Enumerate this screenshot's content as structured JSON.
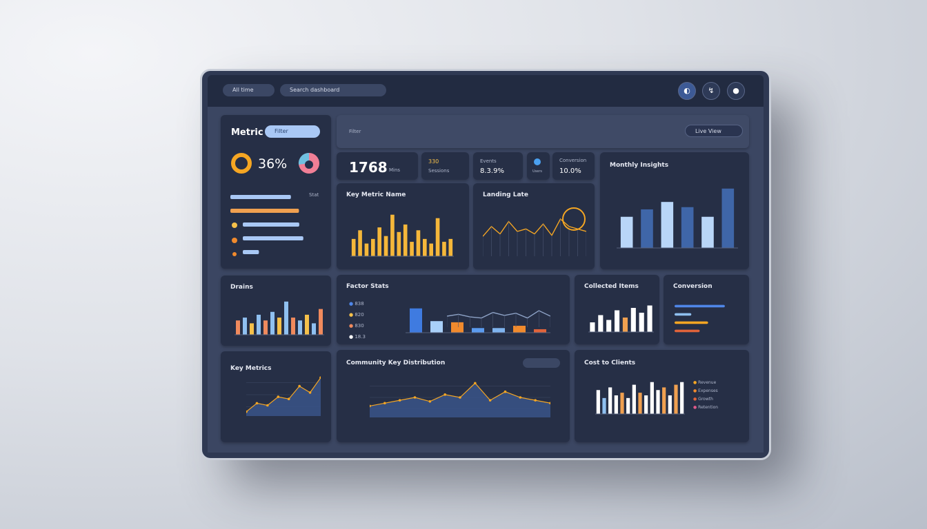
{
  "header": {
    "menu": "All time",
    "search": "Search dashboard"
  },
  "metric": {
    "title": "Metric",
    "filter": "Filter",
    "value": "36%",
    "note": "Stat"
  },
  "toolbar": {
    "label": "Filter",
    "button": "Live View"
  },
  "kpis": [
    {
      "value": "1768",
      "unit": "Mins"
    },
    {
      "value": "330",
      "label": "Sessions"
    },
    {
      "value": "8.3.9%",
      "label": "Events"
    },
    {
      "label": "Users"
    },
    {
      "value": "10.0%",
      "label": "Conversion"
    }
  ],
  "charts": [
    {
      "type": "hbar",
      "values": [
        75,
        85,
        70,
        75,
        20
      ],
      "xlim": [
        0,
        100
      ],
      "colors": [
        "#a9c8f5",
        "#f0a050",
        "#a9c8f5",
        "#a9c8f5",
        "#a9c8f5"
      ]
    },
    {
      "type": "bar",
      "title": "Key Metric Name",
      "values": [
        30,
        45,
        22,
        30,
        50,
        35,
        72,
        42,
        55,
        25,
        45,
        30,
        22,
        66,
        25,
        30
      ],
      "ylim": [
        0,
        80
      ],
      "color": "#f5b73a"
    },
    {
      "type": "line",
      "title": "Landing Late",
      "values": [
        40,
        60,
        45,
        70,
        50,
        55,
        45,
        65,
        42,
        75,
        60,
        55,
        50
      ],
      "ylim": [
        0,
        100
      ],
      "color": "#f5a623"
    },
    {
      "type": "bar",
      "title": "Monthly Insights",
      "values": [
        42,
        52,
        62,
        55,
        42,
        80
      ],
      "ylim": [
        0,
        90
      ],
      "colors": [
        "#b9d6f8",
        "#3f66a8",
        "#b9d6f8",
        "#3f66a8",
        "#b9d6f8",
        "#3f66a8"
      ]
    },
    {
      "type": "bar",
      "title": "Drains",
      "values": [
        25,
        30,
        20,
        35,
        25,
        40,
        30,
        58,
        30,
        25,
        35,
        20,
        45
      ],
      "ylim": [
        0,
        65
      ],
      "colors": [
        "#f08a5d",
        "#8fc0f0",
        "#f5c04a",
        "#8fc0f0",
        "#f08a5d",
        "#8fc0f0",
        "#f5c04a",
        "#8fc0f0",
        "#f08a5d",
        "#8fc0f0",
        "#f5c04a",
        "#8fc0f0",
        "#f08a5d"
      ]
    },
    {
      "type": "bar",
      "title": "Factor Stats",
      "values": [
        42,
        20,
        18,
        8,
        8,
        12,
        6
      ],
      "ylim": [
        0,
        50
      ],
      "colors": [
        "#3f7be0",
        "#a9d0f8",
        "#f08a2d",
        "#5b9bef",
        "#7fb4f0",
        "#f08a2d",
        "#e0633a"
      ],
      "legend": [
        "838",
        "820",
        "830",
        "18.3"
      ]
    },
    {
      "type": "line",
      "values": [
        30,
        35,
        28,
        25,
        40,
        32,
        38,
        25,
        45,
        30
      ],
      "ylim": [
        0,
        60
      ],
      "color": "#8ea3c7"
    },
    {
      "type": "bar",
      "title": "Collected Items",
      "values": [
        20,
        35,
        25,
        45,
        30,
        50,
        40,
        55
      ],
      "ylim": [
        0,
        60
      ],
      "colors": [
        "#ffffff",
        "#ffffff",
        "#ffffff",
        "#ffffff",
        "#f0a050",
        "#ffffff",
        "#ffffff",
        "#ffffff"
      ]
    },
    {
      "type": "hbar",
      "title": "Conversion",
      "values": [
        90,
        30,
        60,
        45
      ],
      "xlim": [
        0,
        100
      ],
      "colors": [
        "#4f86e8",
        "#8fc0f0",
        "#f5a623",
        "#e0633a"
      ]
    },
    {
      "type": "area",
      "title": "Key Metrics",
      "values": [
        10,
        30,
        25,
        45,
        40,
        70,
        55,
        90
      ],
      "ylim": [
        0,
        100
      ],
      "color": "#f5a623"
    },
    {
      "type": "area",
      "title": "Community Key Distribution",
      "values": [
        20,
        25,
        30,
        35,
        28,
        40,
        35,
        60,
        30,
        45,
        35,
        30,
        25
      ],
      "ylim": [
        0,
        70
      ],
      "color": "#f5a623"
    },
    {
      "type": "bar",
      "title": "Cost to Clients",
      "values": [
        45,
        30,
        50,
        35,
        40,
        30,
        55,
        40,
        35,
        60,
        45,
        50,
        35,
        55,
        60
      ],
      "ylim": [
        0,
        70
      ],
      "colors": [
        "#ffffff",
        "#8fc0f0",
        "#ffffff",
        "#ffffff",
        "#f0a050",
        "#ffffff",
        "#ffffff",
        "#f0a050",
        "#ffffff",
        "#ffffff",
        "#ffffff",
        "#f0a050",
        "#ffffff",
        "#f0a050",
        "#ffffff"
      ],
      "legend": [
        "Revenue",
        "Expenses",
        "Growth",
        "Retention"
      ]
    }
  ]
}
